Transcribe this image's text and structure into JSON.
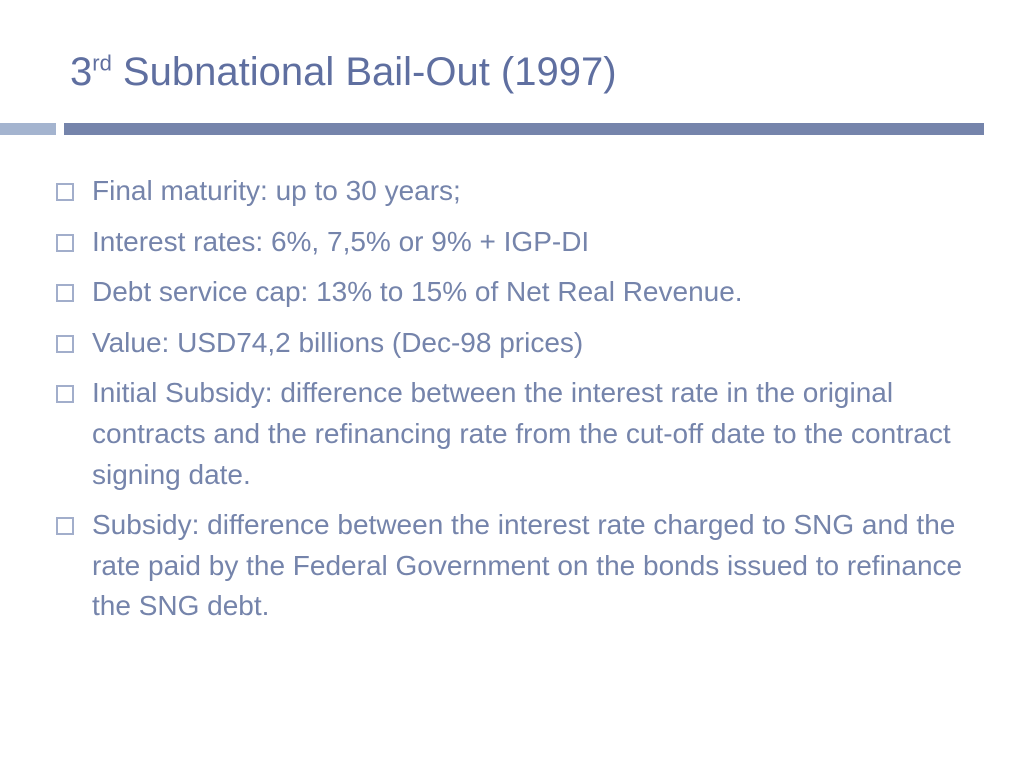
{
  "colors": {
    "title": "#5f6fa0",
    "body_text": "#7584ab",
    "divider_accent": "#a4b4cf",
    "divider_main": "#7584ab",
    "bullet_border": "#a2aecb",
    "background": "#ffffff"
  },
  "typography": {
    "title_fontsize": 40,
    "title_sup_fontsize": 22,
    "body_fontsize": 28,
    "font_family": "Century Gothic"
  },
  "title": {
    "prefix": "3",
    "ordinal": "rd",
    "rest": " Subnational Bail-Out (1997)"
  },
  "bullets": [
    "Final maturity: up to 30 years;",
    "Interest rates: 6%, 7,5% or 9% + IGP-DI",
    "Debt service cap: 13% to 15% of Net Real Revenue.",
    "Value: USD74,2 billions (Dec-98 prices)",
    "Initial Subsidy: difference between  the interest rate in the original contracts and the refinancing rate from the cut-off date to the contract signing date.",
    "Subsidy: difference between the interest rate charged to SNG and the rate paid by the Federal Government on the bonds issued to refinance the SNG debt."
  ]
}
